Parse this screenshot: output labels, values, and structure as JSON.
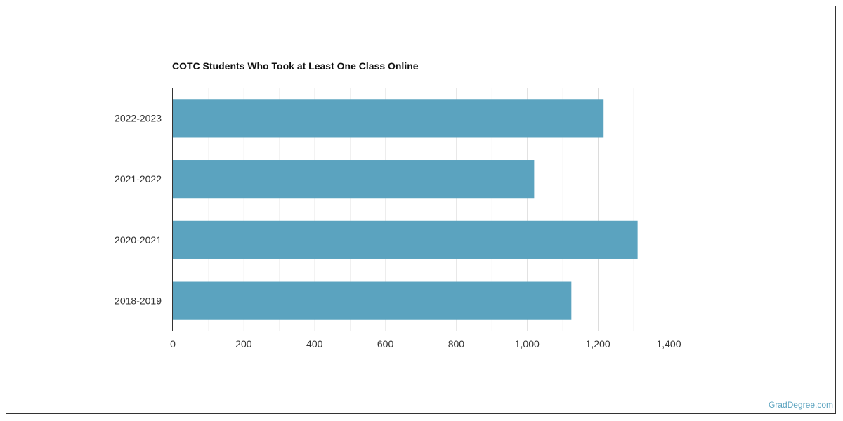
{
  "chart_data": {
    "type": "bar",
    "orientation": "horizontal",
    "title": "COTC Students Who Took at Least One Class Online",
    "categories": [
      "2022-2023",
      "2021-2022",
      "2020-2021",
      "2018-2019"
    ],
    "values": [
      1216,
      1020,
      1312,
      1125
    ],
    "xlim": [
      0,
      1400
    ],
    "x_ticks": [
      "0",
      "200",
      "400",
      "600",
      "800",
      "1,000",
      "1,200",
      "1,400"
    ],
    "grid": true,
    "colors": {
      "bar": "#5ba3bf",
      "grid": "#dddddd",
      "axis": "#333333"
    }
  },
  "watermark": "GradDegree.com"
}
